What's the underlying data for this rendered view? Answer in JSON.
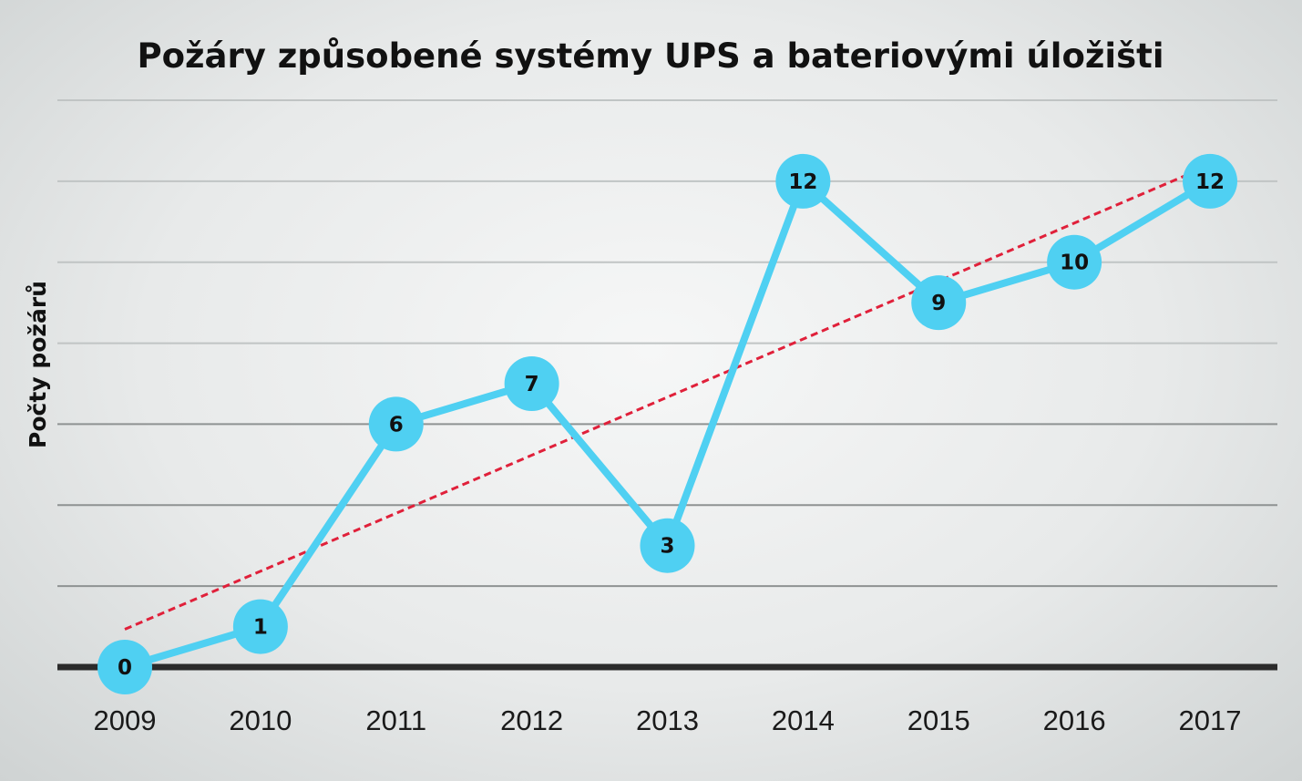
{
  "chart_data": {
    "type": "line",
    "title": "Požáry způsobené systémy UPS a bateriovými úložišti",
    "ylabel": "Počty požárů",
    "xlabel": "",
    "categories": [
      "2009",
      "2010",
      "2011",
      "2012",
      "2013",
      "2014",
      "2015",
      "2016",
      "2017"
    ],
    "series": [
      {
        "values": [
          0,
          1,
          6,
          7,
          3,
          12,
          9,
          10,
          12
        ],
        "color": "#4fd0f2"
      }
    ],
    "trendline": {
      "type": "linear",
      "style": "dashed",
      "color": "#e0203a"
    },
    "ylim": [
      0,
      14
    ],
    "grid": true,
    "data_labels": true,
    "legend": "none"
  }
}
